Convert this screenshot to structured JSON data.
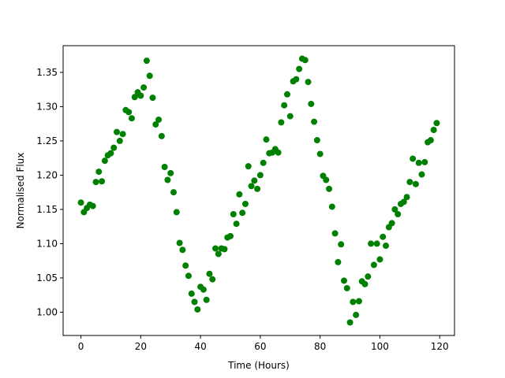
{
  "chart_data": {
    "type": "scatter",
    "xlabel": "Time (Hours)",
    "ylabel": "Normalised Flux",
    "color": "#008000",
    "x": [
      0,
      1,
      2,
      3,
      4,
      5,
      6,
      7,
      8,
      9,
      10,
      11,
      12,
      13,
      14,
      15,
      16,
      17,
      18,
      19,
      20,
      21,
      22,
      23,
      24,
      25,
      26,
      27,
      28,
      29,
      30,
      31,
      32,
      33,
      34,
      35,
      36,
      37,
      38,
      39,
      40,
      41,
      42,
      43,
      44,
      45,
      46,
      47,
      48,
      49,
      50,
      51,
      52,
      53,
      54,
      55,
      56,
      57,
      58,
      59,
      60,
      61,
      62,
      63,
      64,
      65,
      66,
      67,
      68,
      69,
      70,
      71,
      72,
      73,
      74,
      75,
      76,
      77,
      78,
      79,
      80,
      81,
      82,
      83,
      84,
      85,
      86,
      87,
      88,
      89,
      90,
      91,
      92,
      93,
      94,
      95,
      96,
      97,
      98,
      99,
      100,
      101,
      102,
      103,
      104,
      105,
      106,
      107,
      108,
      109,
      110,
      111,
      112,
      113,
      114,
      115,
      116,
      117,
      118,
      119
    ],
    "values": [
      1.16,
      1.146,
      1.152,
      1.157,
      1.155,
      1.19,
      1.205,
      1.191,
      1.221,
      1.229,
      1.232,
      1.24,
      1.263,
      1.25,
      1.26,
      1.295,
      1.292,
      1.283,
      1.314,
      1.321,
      1.316,
      1.328,
      1.367,
      1.345,
      1.313,
      1.274,
      1.281,
      1.257,
      1.212,
      1.193,
      1.203,
      1.175,
      1.146,
      1.101,
      1.091,
      1.068,
      1.053,
      1.027,
      1.015,
      1.004,
      1.037,
      1.033,
      1.018,
      1.056,
      1.048,
      1.093,
      1.085,
      1.093,
      1.092,
      1.109,
      1.111,
      1.143,
      1.129,
      1.172,
      1.145,
      1.158,
      1.213,
      1.184,
      1.192,
      1.18,
      1.2,
      1.218,
      1.252,
      1.232,
      1.233,
      1.238,
      1.233,
      1.277,
      1.302,
      1.318,
      1.286,
      1.337,
      1.34,
      1.355,
      1.37,
      1.368,
      1.336,
      1.304,
      1.278,
      1.251,
      1.231,
      1.199,
      1.193,
      1.18,
      1.154,
      1.115,
      1.073,
      1.099,
      1.046,
      1.035,
      0.985,
      1.015,
      0.996,
      1.016,
      1.045,
      1.041,
      1.052,
      1.1,
      1.069,
      1.1,
      1.077,
      1.11,
      1.097,
      1.124,
      1.13,
      1.15,
      1.143,
      1.158,
      1.161,
      1.168,
      1.19,
      1.224,
      1.187,
      1.218,
      1.201,
      1.219,
      1.248,
      1.251,
      1.266,
      1.276
    ],
    "xlim": [
      -5.95,
      124.95
    ],
    "ylim": [
      0.966,
      1.389
    ],
    "xticks": [
      0,
      20,
      40,
      60,
      80,
      100,
      120
    ],
    "yticks": [
      {
        "value": 1.0,
        "label": "1.00"
      },
      {
        "value": 1.05,
        "label": "1.05"
      },
      {
        "value": 1.1,
        "label": "1.10"
      },
      {
        "value": 1.15,
        "label": "1.15"
      },
      {
        "value": 1.2,
        "label": "1.20"
      },
      {
        "value": 1.25,
        "label": "1.25"
      },
      {
        "value": 1.3,
        "label": "1.30"
      },
      {
        "value": 1.35,
        "label": "1.35"
      }
    ]
  }
}
